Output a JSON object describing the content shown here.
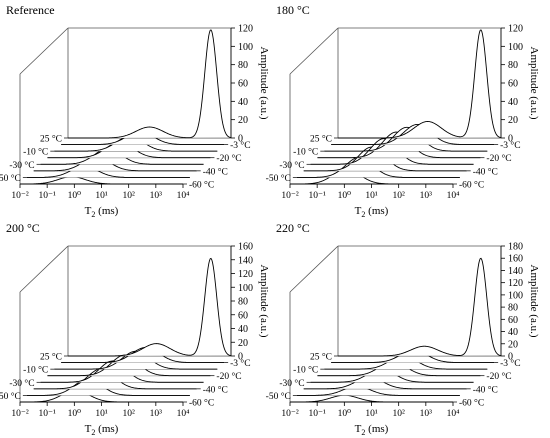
{
  "chart_data": [
    {
      "type": "line",
      "title": "Reference",
      "xlabel": "T",
      "xlabel_sub": "2",
      "xlabel_unit": " (ms)",
      "ylabel": "Amplitude (a.u.)",
      "ylim": [
        0,
        120
      ],
      "yticks": [
        "0",
        "20",
        "40",
        "60",
        "80",
        "100",
        "120"
      ],
      "xticks": [
        "10⁻²",
        "10⁻¹",
        "10⁰",
        "10¹",
        "10²",
        "10³",
        "10⁴"
      ],
      "log_x": true,
      "depth_labels_left": [
        "25 °C",
        "-10 °C",
        "-30 °C",
        "-50 °C"
      ],
      "depth_labels_right": [
        "-3 °C",
        "-20 °C",
        "-40 °C",
        "-60 °C"
      ],
      "series": [
        {
          "name": "25 °C",
          "peaks": [
            {
              "center": 10,
              "height": 12,
              "width": 0.5
            },
            {
              "center": 1800,
              "height": 118,
              "width": 0.22
            }
          ]
        },
        {
          "name": "-3 °C",
          "peaks": [
            {
              "center": 8,
              "height": 14,
              "width": 0.5
            }
          ]
        },
        {
          "name": "-10 °C",
          "peaks": [
            {
              "center": 6,
              "height": 16,
              "width": 0.5
            }
          ]
        },
        {
          "name": "-20 °C",
          "peaks": [
            {
              "center": 4.5,
              "height": 17,
              "width": 0.5
            }
          ]
        },
        {
          "name": "-30 °C",
          "peaks": [
            {
              "center": 3,
              "height": 17,
              "width": 0.5
            }
          ]
        },
        {
          "name": "-40 °C",
          "peaks": [
            {
              "center": 2,
              "height": 15,
              "width": 0.5
            }
          ]
        },
        {
          "name": "-50 °C",
          "peaks": [
            {
              "center": 1.3,
              "height": 12,
              "width": 0.5
            }
          ]
        },
        {
          "name": "-60 °C",
          "peaks": [
            {
              "center": 0.8,
              "height": 8,
              "width": 0.5
            }
          ]
        }
      ]
    },
    {
      "type": "line",
      "title": "180 °C",
      "xlabel": "T",
      "xlabel_sub": "2",
      "xlabel_unit": " (ms)",
      "ylabel": "Amplitude (a.u.)",
      "ylim": [
        0,
        120
      ],
      "yticks": [
        "0",
        "20",
        "40",
        "60",
        "80",
        "100",
        "120"
      ],
      "xticks": [
        "10⁻²",
        "10⁻¹",
        "10⁰",
        "10¹",
        "10²",
        "10³",
        "10⁴"
      ],
      "log_x": true,
      "depth_labels_left": [
        "25 °C",
        "-10 °C",
        "-30 °C",
        "-50 °C"
      ],
      "depth_labels_right": [
        "-3 °C",
        "-20 °C",
        "-40 °C",
        "-60 °C"
      ],
      "series": [
        {
          "name": "25 °C",
          "peaks": [
            {
              "center": 20,
              "height": 18,
              "width": 0.5
            },
            {
              "center": 1800,
              "height": 118,
              "width": 0.22
            }
          ]
        },
        {
          "name": "-3 °C",
          "peaks": [
            {
              "center": 15,
              "height": 22,
              "width": 0.5
            }
          ]
        },
        {
          "name": "-10 °C",
          "peaks": [
            {
              "center": 11,
              "height": 26,
              "width": 0.5
            }
          ]
        },
        {
          "name": "-20 °C",
          "peaks": [
            {
              "center": 8,
              "height": 28,
              "width": 0.5
            }
          ]
        },
        {
          "name": "-30 °C",
          "peaks": [
            {
              "center": 5,
              "height": 28,
              "width": 0.5
            }
          ]
        },
        {
          "name": "-40 °C",
          "peaks": [
            {
              "center": 3.2,
              "height": 26,
              "width": 0.5
            }
          ]
        },
        {
          "name": "-50 °C",
          "peaks": [
            {
              "center": 2,
              "height": 22,
              "width": 0.5
            }
          ]
        },
        {
          "name": "-60 °C",
          "peaks": [
            {
              "center": 1.2,
              "height": 16,
              "width": 0.5
            }
          ]
        }
      ]
    },
    {
      "type": "line",
      "title": "200 °C",
      "xlabel": "T",
      "xlabel_sub": "2",
      "xlabel_unit": " (ms)",
      "ylabel": "Amplitude (a.u.)",
      "ylim": [
        0,
        160
      ],
      "yticks": [
        "0",
        "20",
        "40",
        "60",
        "80",
        "100",
        "120",
        "140",
        "160"
      ],
      "xticks": [
        "10⁻²",
        "10⁻¹",
        "10⁰",
        "10¹",
        "10²",
        "10³",
        "10⁴"
      ],
      "log_x": true,
      "depth_labels_left": [
        "25 °C",
        "-10 °C",
        "-30 °C",
        "-50 °C"
      ],
      "depth_labels_right": [
        "-3 °C",
        "-20 °C",
        "-40 °C",
        "-60 °C"
      ],
      "series": [
        {
          "name": "25 °C",
          "peaks": [
            {
              "center": 18,
              "height": 18,
              "width": 0.5
            },
            {
              "center": 1800,
              "height": 142,
              "width": 0.22
            }
          ]
        },
        {
          "name": "-3 °C",
          "peaks": [
            {
              "center": 13,
              "height": 22,
              "width": 0.5
            }
          ]
        },
        {
          "name": "-10 °C",
          "peaks": [
            {
              "center": 10,
              "height": 26,
              "width": 0.5
            }
          ]
        },
        {
          "name": "-20 °C",
          "peaks": [
            {
              "center": 7,
              "height": 30,
              "width": 0.5
            }
          ]
        },
        {
          "name": "-30 °C",
          "peaks": [
            {
              "center": 4.5,
              "height": 31,
              "width": 0.5
            }
          ]
        },
        {
          "name": "-40 °C",
          "peaks": [
            {
              "center": 3,
              "height": 29,
              "width": 0.5
            }
          ]
        },
        {
          "name": "-50 °C",
          "peaks": [
            {
              "center": 1.8,
              "height": 24,
              "width": 0.5
            }
          ]
        },
        {
          "name": "-60 °C",
          "peaks": [
            {
              "center": 1.1,
              "height": 17,
              "width": 0.5
            }
          ]
        }
      ]
    },
    {
      "type": "line",
      "title": "220 °C",
      "xlabel": "T",
      "xlabel_sub": "2",
      "xlabel_unit": " (ms)",
      "ylabel": "Amplitude (a.u.)",
      "ylim": [
        0,
        180
      ],
      "yticks": [
        "0",
        "20",
        "40",
        "60",
        "80",
        "100",
        "120",
        "140",
        "160",
        "180"
      ],
      "xticks": [
        "10⁻²",
        "10⁻¹",
        "10⁰",
        "10¹",
        "10²",
        "10³",
        "10⁴"
      ],
      "log_x": true,
      "depth_labels_left": [
        "25 °C",
        "-10 °C",
        "-30 °C",
        "-50 °C"
      ],
      "depth_labels_right": [
        "-3 °C",
        "-20 °C",
        "-40 °C",
        "-60 °C"
      ],
      "series": [
        {
          "name": "25 °C",
          "peaks": [
            {
              "center": 15,
              "height": 16,
              "width": 0.5
            },
            {
              "center": 1800,
              "height": 160,
              "width": 0.22
            }
          ]
        },
        {
          "name": "-3 °C",
          "peaks": [
            {
              "center": 11,
              "height": 20,
              "width": 0.5
            }
          ]
        },
        {
          "name": "-10 °C",
          "peaks": [
            {
              "center": 8,
              "height": 22,
              "width": 0.5
            }
          ]
        },
        {
          "name": "-20 °C",
          "peaks": [
            {
              "center": 6,
              "height": 23,
              "width": 0.5
            }
          ]
        },
        {
          "name": "-30 °C",
          "peaks": [
            {
              "center": 4,
              "height": 22,
              "width": 0.5
            }
          ]
        },
        {
          "name": "-40 °C",
          "peaks": [
            {
              "center": 2.6,
              "height": 19,
              "width": 0.5
            }
          ]
        },
        {
          "name": "-50 °C",
          "peaks": [
            {
              "center": 1.6,
              "height": 15,
              "width": 0.5
            }
          ]
        },
        {
          "name": "-60 °C",
          "peaks": [
            {
              "center": 1,
              "height": 11,
              "width": 0.5
            }
          ]
        }
      ]
    }
  ]
}
